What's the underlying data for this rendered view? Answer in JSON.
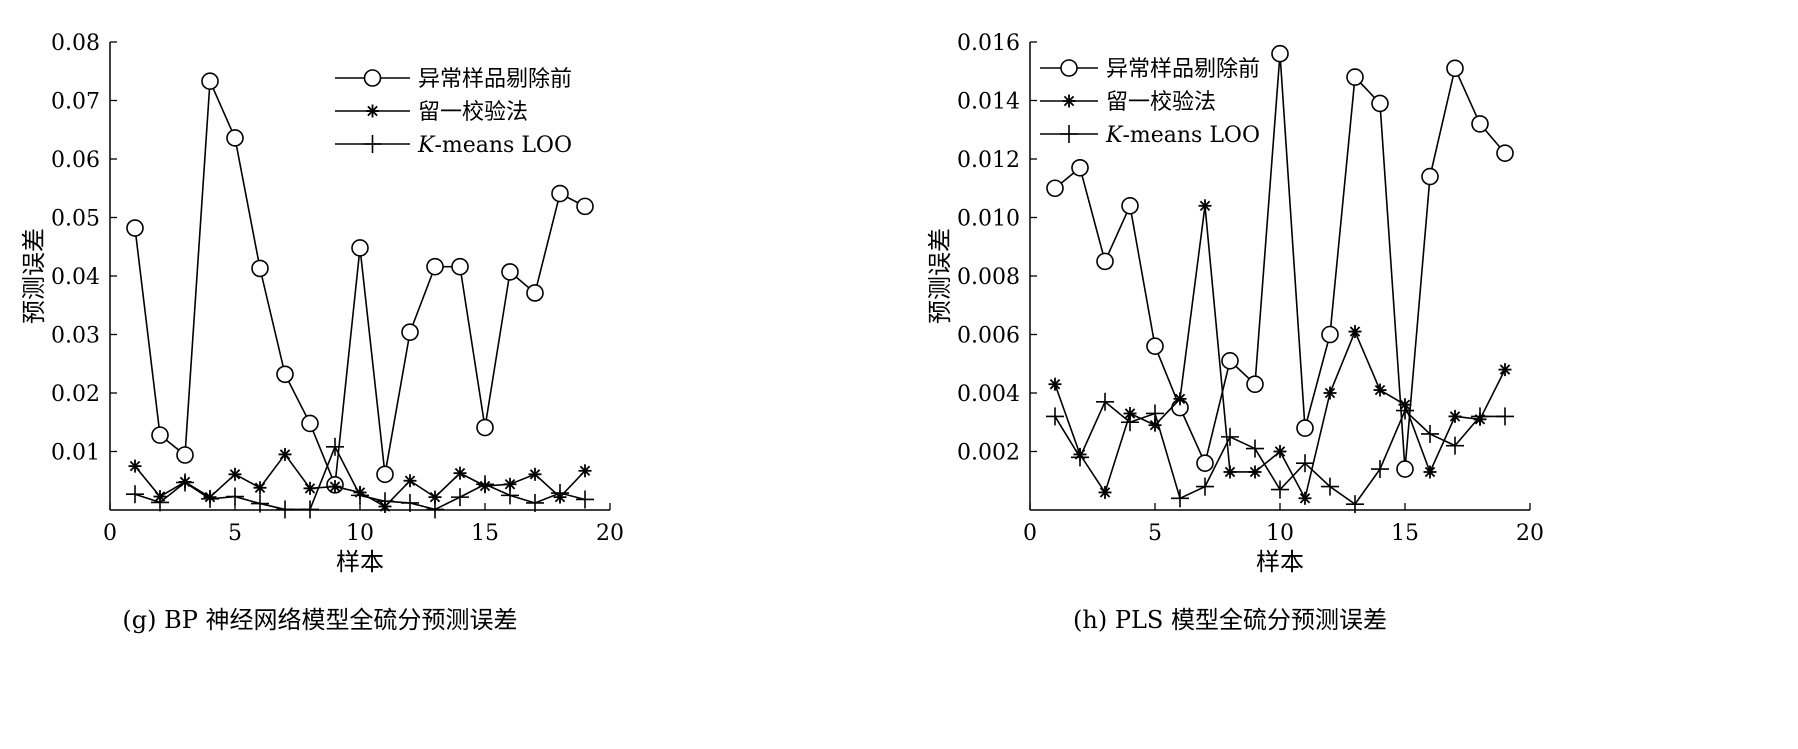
{
  "chart_data": [
    {
      "type": "line",
      "caption": "(g) BP 神经网络模型全硫分预测误差",
      "xlabel": "样本",
      "ylabel": "预测误差",
      "xlim": [
        0,
        20
      ],
      "ylim": [
        0,
        0.08
      ],
      "xticks": [
        "0",
        "5",
        "10",
        "15",
        "20"
      ],
      "yticks": [
        "0.01",
        "0.02",
        "0.03",
        "0.04",
        "0.05",
        "0.06",
        "0.07",
        "0.08"
      ],
      "grid": false,
      "legend": "top-right",
      "x": [
        1,
        2,
        3,
        4,
        5,
        6,
        7,
        8,
        9,
        10,
        11,
        12,
        13,
        14,
        15,
        16,
        17,
        18,
        19
      ],
      "series": [
        {
          "name": "异常样品剔除前",
          "marker": "circle",
          "values": [
            0.0482,
            0.0128,
            0.0094,
            0.0733,
            0.0636,
            0.0413,
            0.0232,
            0.0148,
            0.0043,
            0.0448,
            0.0061,
            0.0304,
            0.0416,
            0.0416,
            0.0141,
            0.0407,
            0.0371,
            0.0541,
            0.0519
          ]
        },
        {
          "name": "留一校验法",
          "marker": "star",
          "values": [
            0.0075,
            0.0023,
            0.0048,
            0.0022,
            0.0061,
            0.0038,
            0.0095,
            0.0037,
            0.004,
            0.003,
            0.0006,
            0.005,
            0.0022,
            0.0063,
            0.0041,
            0.0044,
            0.0061,
            0.0022,
            0.0067
          ]
        },
        {
          "name": "K-means LOO",
          "legend_parts": [
            "K",
            "-means LOO"
          ],
          "marker": "plus",
          "values": [
            0.0027,
            0.0013,
            0.0047,
            0.0019,
            0.0023,
            0.0011,
            0.0001,
            0.0001,
            0.0108,
            0.0025,
            0.0015,
            0.0012,
            0.0001,
            0.0022,
            0.0044,
            0.0025,
            0.0012,
            0.0029,
            0.0018
          ]
        }
      ]
    },
    {
      "type": "line",
      "caption": "(h) PLS 模型全硫分预测误差",
      "xlabel": "样本",
      "ylabel": "预测误差",
      "xlim": [
        0,
        20
      ],
      "ylim": [
        0,
        0.016
      ],
      "xticks": [
        "0",
        "5",
        "10",
        "15",
        "20"
      ],
      "yticks": [
        "0.002",
        "0.004",
        "0.006",
        "0.008",
        "0.010",
        "0.012",
        "0.014",
        "0.016"
      ],
      "grid": false,
      "legend": "top-left",
      "x": [
        1,
        2,
        3,
        4,
        5,
        6,
        7,
        8,
        9,
        10,
        11,
        12,
        13,
        14,
        15,
        16,
        17,
        18,
        19
      ],
      "series": [
        {
          "name": "异常样品剔除前",
          "marker": "circle",
          "values": [
            0.011,
            0.0117,
            0.0085,
            0.0104,
            0.0056,
            0.0035,
            0.0016,
            0.0051,
            0.0043,
            0.0156,
            0.0028,
            0.006,
            0.0148,
            0.0139,
            0.0014,
            0.0114,
            0.0151,
            0.0132,
            0.0122
          ]
        },
        {
          "name": "留一校验法",
          "marker": "star",
          "values": [
            0.0043,
            0.0019,
            0.0006,
            0.0033,
            0.0029,
            0.0038,
            0.0104,
            0.0013,
            0.0013,
            0.002,
            0.0004,
            0.004,
            0.0061,
            0.0041,
            0.0036,
            0.0013,
            0.0032,
            0.0031,
            0.0048
          ]
        },
        {
          "name": "K-means LOO",
          "legend_parts": [
            "K",
            "-means LOO"
          ],
          "marker": "plus",
          "values": [
            0.0032,
            0.0018,
            0.0037,
            0.003,
            0.0033,
            0.0004,
            0.0008,
            0.0025,
            0.0021,
            0.0007,
            0.0016,
            0.0008,
            0.0002,
            0.0014,
            0.0034,
            0.0026,
            0.0022,
            0.0032,
            0.0032
          ]
        }
      ]
    }
  ]
}
